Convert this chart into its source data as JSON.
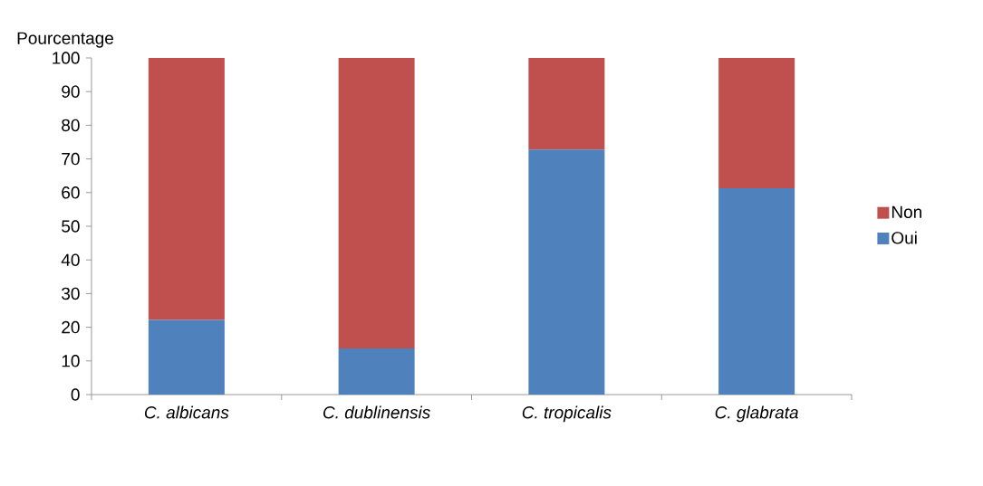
{
  "chart_data": {
    "type": "bar",
    "stacked": true,
    "ylabel": "Pourcentage",
    "categories": [
      "C. albicans",
      "C. dublinensis",
      "C. tropicalis",
      "C. glabrata"
    ],
    "series": [
      {
        "name": "Oui",
        "color": "#4f81bd",
        "values": [
          22.2,
          13.7,
          72.8,
          61.3
        ]
      },
      {
        "name": "Non",
        "color": "#c0504d",
        "values": [
          77.8,
          86.3,
          27.2,
          38.7
        ]
      }
    ],
    "ylim": [
      0,
      100
    ],
    "yticks": [
      0,
      10,
      20,
      30,
      40,
      50,
      60,
      70,
      80,
      90,
      100
    ],
    "legend": "right"
  }
}
